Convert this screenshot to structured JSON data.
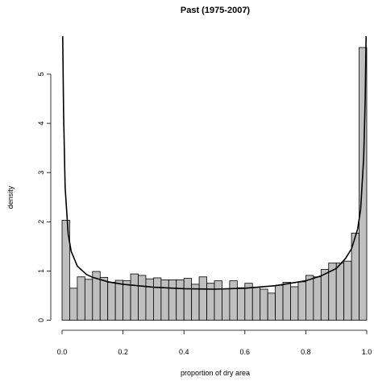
{
  "chart_data": {
    "type": "bar",
    "title": "Past (1975-2007)",
    "xlabel": "proportion of dry area",
    "ylabel": "density",
    "xlim": [
      0,
      1
    ],
    "ylim": [
      0,
      5.6
    ],
    "x_ticks": [
      "0.0",
      "0.2",
      "0.4",
      "0.6",
      "0.8",
      "1.0"
    ],
    "y_ticks": [
      "0",
      "1",
      "2",
      "3",
      "4",
      "5"
    ],
    "bin_width": 0.025,
    "bin_starts": [
      0.0,
      0.025,
      0.05,
      0.075,
      0.1,
      0.125,
      0.15,
      0.175,
      0.2,
      0.225,
      0.25,
      0.275,
      0.3,
      0.325,
      0.35,
      0.375,
      0.4,
      0.425,
      0.45,
      0.475,
      0.5,
      0.525,
      0.55,
      0.575,
      0.6,
      0.625,
      0.65,
      0.675,
      0.7,
      0.725,
      0.75,
      0.775,
      0.8,
      0.825,
      0.85,
      0.875,
      0.9,
      0.925,
      0.95,
      0.975
    ],
    "values": [
      2.03,
      0.65,
      0.88,
      0.83,
      0.99,
      0.87,
      0.77,
      0.81,
      0.8,
      0.94,
      0.91,
      0.84,
      0.86,
      0.82,
      0.82,
      0.82,
      0.85,
      0.73,
      0.88,
      0.75,
      0.8,
      0.64,
      0.8,
      0.66,
      0.75,
      0.67,
      0.63,
      0.55,
      0.71,
      0.77,
      0.68,
      0.78,
      0.91,
      0.88,
      1.03,
      1.16,
      1.16,
      1.2,
      1.77,
      5.54
    ],
    "curve": {
      "type": "line",
      "shape": "U-shaped beta density fit",
      "x": [
        0.002,
        0.005,
        0.01,
        0.02,
        0.03,
        0.05,
        0.08,
        0.1,
        0.15,
        0.2,
        0.3,
        0.4,
        0.5,
        0.6,
        0.7,
        0.8,
        0.85,
        0.9,
        0.93,
        0.95,
        0.97,
        0.98,
        0.99,
        0.995,
        0.998
      ],
      "y": [
        5.8,
        4.2,
        2.7,
        1.75,
        1.4,
        1.1,
        0.93,
        0.87,
        0.78,
        0.73,
        0.67,
        0.64,
        0.63,
        0.65,
        0.7,
        0.8,
        0.9,
        1.05,
        1.25,
        1.45,
        1.85,
        2.25,
        3.3,
        4.5,
        5.8
      ]
    }
  }
}
